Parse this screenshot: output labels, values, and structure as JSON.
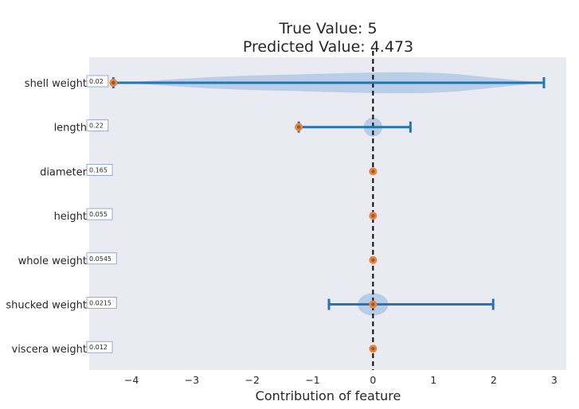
{
  "chart_data": {
    "type": "violin-errorbar",
    "title": [
      "True Value: 5",
      "Predicted Value: 4.473"
    ],
    "xlabel": "Contribution of feature",
    "ylabel": "",
    "xlim": [
      -4.7,
      3.2
    ],
    "xticks": [
      -4,
      -3,
      -2,
      -1,
      0,
      1,
      2,
      3
    ],
    "xtick_labels": [
      "−4",
      "−3",
      "−2",
      "−1",
      "0",
      "1",
      "2",
      "3"
    ],
    "reference_line_x": 0,
    "grid": false,
    "features": [
      {
        "name": "shell weight",
        "value_label": "0.02",
        "point": -4.3,
        "low": -4.3,
        "high": 2.83,
        "violin_spread": [
          -4.3,
          2.83
        ]
      },
      {
        "name": "length",
        "value_label": "0.22",
        "point": -1.23,
        "low": -1.23,
        "high": 0.62,
        "violin_spread": [
          -0.1,
          0.1
        ]
      },
      {
        "name": "diameter",
        "value_label": "0.165",
        "point": 0.0,
        "low": 0.0,
        "high": 0.0,
        "violin_spread": [
          0,
          0
        ]
      },
      {
        "name": "height",
        "value_label": "0.055",
        "point": 0.0,
        "low": 0.0,
        "high": 0.0,
        "violin_spread": [
          0,
          0
        ]
      },
      {
        "name": "whole weight",
        "value_label": "0.0545",
        "point": 0.0,
        "low": 0.0,
        "high": 0.0,
        "violin_spread": [
          0,
          0
        ]
      },
      {
        "name": "shucked weight",
        "value_label": "0.0215",
        "point": 0.0,
        "low": -0.73,
        "high": 1.99,
        "violin_spread": [
          -0.2,
          0.2
        ]
      },
      {
        "name": "viscera weight",
        "value_label": "0.012",
        "point": 0.0,
        "low": 0.0,
        "high": 0.0,
        "violin_spread": [
          0,
          0
        ]
      }
    ],
    "colors": {
      "background": "#eaeaf2",
      "errorbar": "#1f77b4",
      "point_outer": "#e8863a",
      "point_inner": "#8c5a3c",
      "violin": "#a9c4e4",
      "reference_line": "#000000"
    }
  }
}
